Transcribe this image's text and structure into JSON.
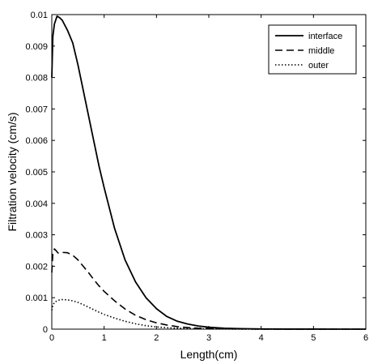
{
  "chart_data": {
    "type": "line",
    "title": "",
    "xlabel": "Length(cm)",
    "ylabel": "Filtration velocity (cm/s)",
    "xlim": [
      0,
      6
    ],
    "ylim": [
      0,
      0.01
    ],
    "grid": false,
    "legend_position": "top-right",
    "xticks": [
      0,
      1,
      2,
      3,
      4,
      5,
      6
    ],
    "xtick_labels": [
      "0",
      "1",
      "2",
      "3",
      "4",
      "5",
      "6"
    ],
    "yticks": [
      0,
      0.001,
      0.002,
      0.003,
      0.004,
      0.005,
      0.006,
      0.007,
      0.008,
      0.009,
      0.01
    ],
    "ytick_labels": [
      "0",
      "0.001",
      "0.002",
      "0.003",
      "0.004",
      "0.005",
      "0.006",
      "0.007",
      "0.008",
      "0.009",
      "0.01"
    ],
    "series": [
      {
        "name": "interface",
        "style": "solid",
        "color": "#000000",
        "x": [
          0,
          0.02,
          0.05,
          0.1,
          0.15,
          0.2,
          0.3,
          0.4,
          0.5,
          0.6,
          0.7,
          0.8,
          0.9,
          1.0,
          1.2,
          1.4,
          1.6,
          1.8,
          2.0,
          2.2,
          2.4,
          2.6,
          2.8,
          3.0,
          3.3,
          3.6,
          4.0,
          4.5,
          5.0,
          5.5,
          6.0
        ],
        "y": [
          0.008,
          0.0093,
          0.0097,
          0.00995,
          0.0099,
          0.00982,
          0.0095,
          0.0091,
          0.0084,
          0.0076,
          0.0068,
          0.006,
          0.0052,
          0.0045,
          0.0032,
          0.0022,
          0.0015,
          0.001,
          0.00065,
          0.0004,
          0.00025,
          0.00016,
          0.0001,
          6e-05,
          3e-05,
          1.5e-05,
          5e-06,
          2e-06,
          1e-06,
          0,
          0
        ]
      },
      {
        "name": "middle",
        "style": "dashed",
        "color": "#000000",
        "x": [
          0,
          0.02,
          0.05,
          0.08,
          0.12,
          0.2,
          0.3,
          0.4,
          0.5,
          0.6,
          0.7,
          0.8,
          0.9,
          1.0,
          1.2,
          1.4,
          1.6,
          1.8,
          2.0,
          2.2,
          2.4,
          2.6,
          2.8,
          3.0,
          3.5,
          4.0,
          5.0,
          6.0
        ],
        "y": [
          0.0018,
          0.0024,
          0.00255,
          0.0025,
          0.00242,
          0.00244,
          0.00243,
          0.00235,
          0.0022,
          0.002,
          0.0018,
          0.00158,
          0.00138,
          0.0012,
          0.0009,
          0.00064,
          0.00044,
          0.0003,
          0.0002,
          0.00013,
          8e-05,
          5e-05,
          3e-05,
          2e-05,
          6e-06,
          2e-06,
          0,
          0
        ]
      },
      {
        "name": "outer",
        "style": "dotted",
        "color": "#000000",
        "x": [
          0,
          0.02,
          0.05,
          0.1,
          0.15,
          0.2,
          0.3,
          0.4,
          0.5,
          0.6,
          0.7,
          0.8,
          0.9,
          1.0,
          1.2,
          1.4,
          1.6,
          1.8,
          2.0,
          2.2,
          2.4,
          2.6,
          2.8,
          3.0,
          3.5,
          4.0,
          5.0,
          6.0
        ],
        "y": [
          0.0006,
          0.00075,
          0.00085,
          0.0009,
          0.00093,
          0.00094,
          0.00093,
          0.0009,
          0.00085,
          0.00078,
          0.0007,
          0.00062,
          0.00054,
          0.00047,
          0.00035,
          0.00025,
          0.00017,
          0.00011,
          7e-05,
          4.5e-05,
          3e-05,
          2e-05,
          1e-05,
          6e-06,
          2e-06,
          1e-06,
          0,
          0
        ]
      }
    ]
  }
}
